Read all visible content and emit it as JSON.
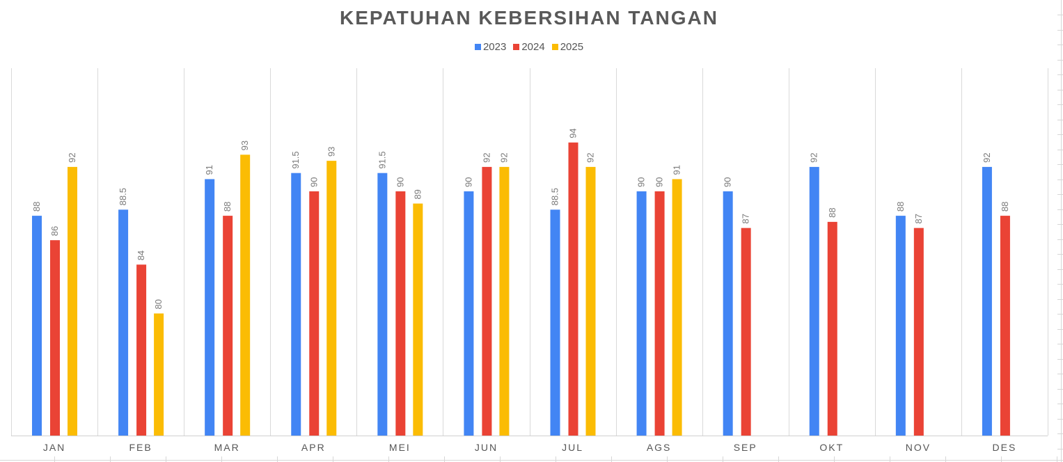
{
  "chart_data": {
    "type": "bar",
    "title": "KEPATUHAN KEBERSIHAN TANGAN",
    "xlabel": "",
    "ylabel": "",
    "ylim": [
      70,
      100
    ],
    "grid": "vertical category separators",
    "legend_position": "top",
    "categories": [
      "JAN",
      "FEB",
      "MAR",
      "APR",
      "MEI",
      "JUN",
      "JUL",
      "AGS",
      "SEP",
      "OKT",
      "NOV",
      "DES"
    ],
    "series": [
      {
        "name": "2023",
        "color": "#4285F4",
        "values": [
          88,
          88.5,
          91,
          91.5,
          91.5,
          90,
          88.5,
          90,
          90,
          92,
          88,
          92
        ],
        "labels": [
          "88",
          "88.5",
          "91",
          "91.5",
          "91.5",
          "90",
          "88.5",
          "90",
          "90",
          "92",
          "88",
          "92"
        ]
      },
      {
        "name": "2024",
        "color": "#EA4335",
        "values": [
          86,
          84,
          88,
          90,
          90,
          92,
          94,
          90,
          87,
          87.5,
          87,
          88
        ],
        "labels": [
          "86",
          "84",
          "88",
          "90",
          "90",
          "92",
          "94",
          "90",
          "87",
          "88",
          "87",
          "88"
        ]
      },
      {
        "name": "2025",
        "color": "#FBBC04",
        "values": [
          92,
          80,
          93,
          92.5,
          89,
          92,
          92,
          91,
          null,
          null,
          null,
          null
        ],
        "labels": [
          "92",
          "80",
          "93",
          "93",
          "89",
          "92",
          "92",
          "91",
          "",
          "",
          "",
          ""
        ]
      }
    ]
  },
  "header": {
    "title": "KEPATUHAN KEBERSIHAN TANGAN"
  },
  "legend": {
    "items": [
      {
        "label": "2023",
        "color": "#4285F4"
      },
      {
        "label": "2024",
        "color": "#EA4335"
      },
      {
        "label": "2025",
        "color": "#FBBC04"
      }
    ]
  }
}
